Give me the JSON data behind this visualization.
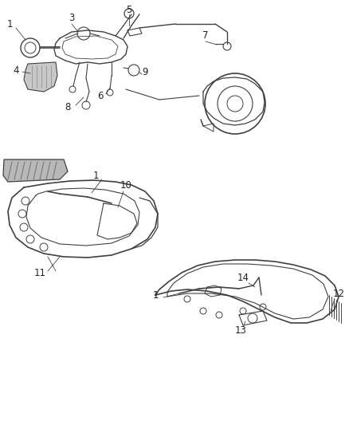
{
  "background_color": "#ffffff",
  "fig_width": 4.38,
  "fig_height": 5.33,
  "dpi": 100,
  "line_color": "#404040",
  "text_color": "#222222",
  "font_size": 8.5,
  "gray_fill": "#d0d0d0",
  "light_gray": "#e8e8e8"
}
